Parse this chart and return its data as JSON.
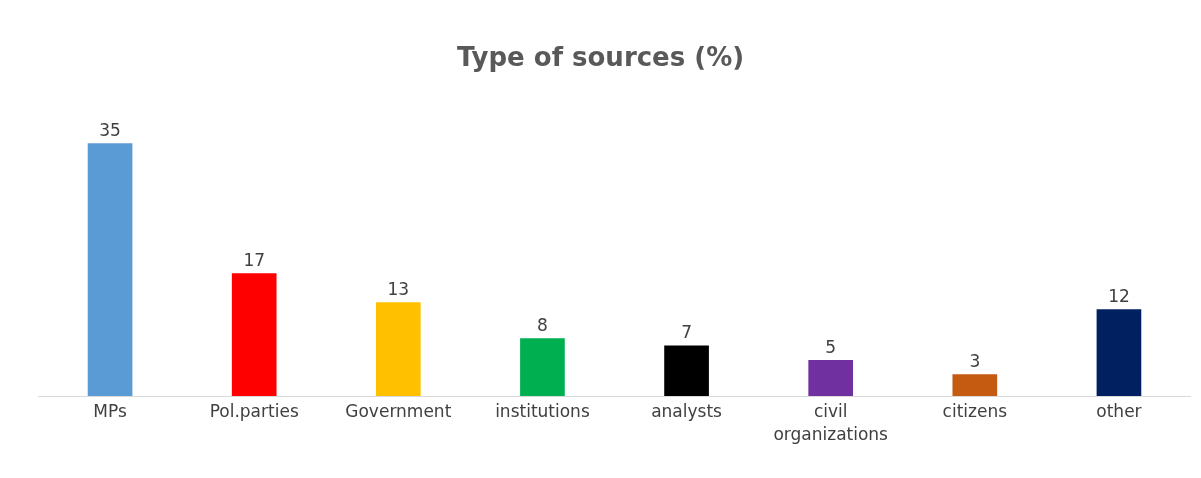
{
  "chart_data": {
    "type": "bar",
    "title": "Type of sources (%)",
    "categories": [
      "MPs",
      "Pol.parties",
      "Government",
      "institutions",
      "analysts",
      "civil organizations",
      "citizens",
      "other"
    ],
    "values": [
      35,
      17,
      13,
      8,
      7,
      5,
      3,
      12
    ],
    "colors": [
      "#5b9bd5",
      "#ff0000",
      "#ffc000",
      "#00b050",
      "#000000",
      "#7030a0",
      "#c55a11",
      "#002060"
    ],
    "data_labels": true
  }
}
